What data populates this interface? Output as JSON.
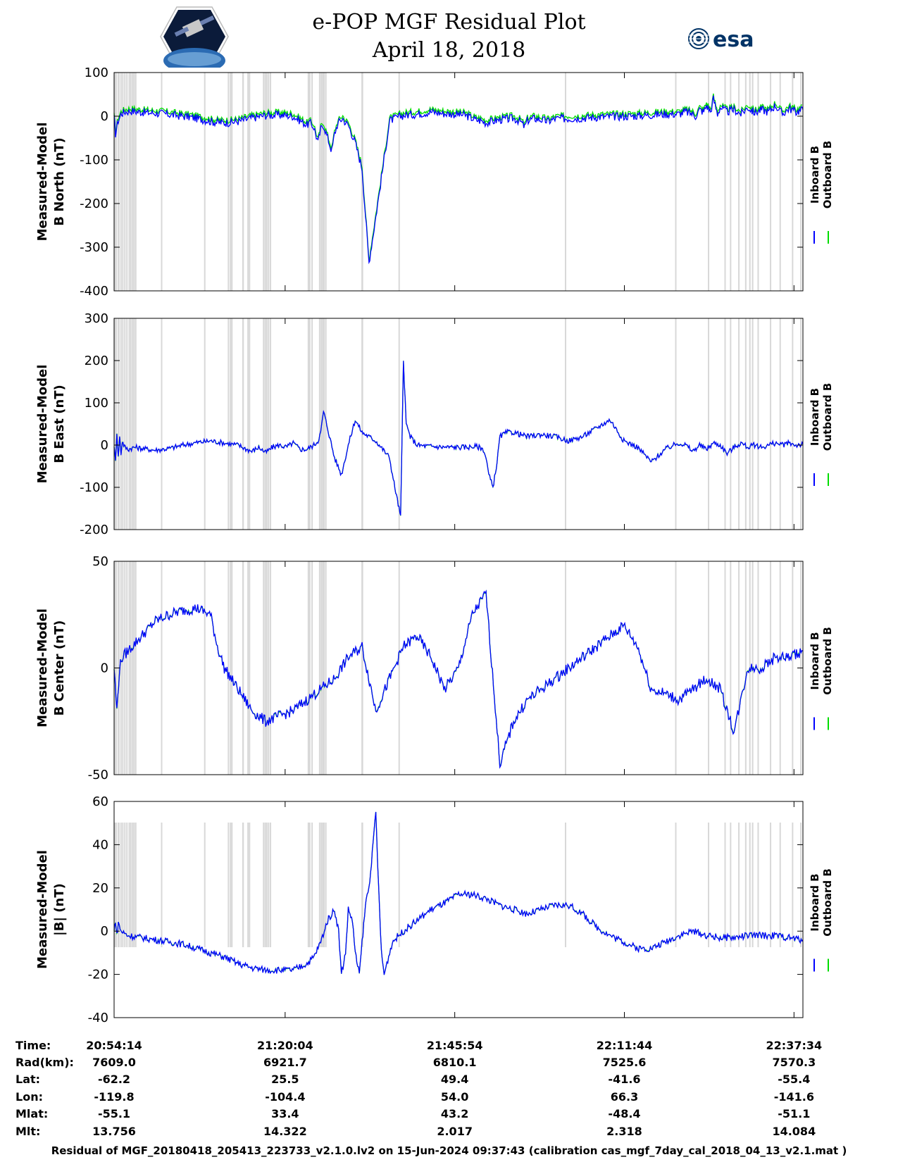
{
  "header": {
    "title": "e-POP MGF Residual Plot",
    "date": "April 18, 2018",
    "left_logo": "cassiope-logo",
    "right_logo": "esa-logo",
    "right_logo_text": "esa"
  },
  "colors": {
    "inboard": "#0000ff",
    "outboard": "#00dd00",
    "gap": "#d8d8d8"
  },
  "legend": {
    "inboard": "Inboard B",
    "outboard": "Outboard B"
  },
  "chart_data": [
    {
      "type": "line",
      "ylabel": [
        "Measured-Model",
        "B North (nT)"
      ],
      "ylim": [
        -400,
        100
      ],
      "yticks": [
        100,
        0,
        -100,
        -200,
        -300,
        -400
      ],
      "x_range_min": [
        0,
        103.33
      ],
      "series": [
        {
          "name": "Inboard B",
          "color": "#0000ff",
          "x": [
            0,
            1,
            3,
            5,
            8,
            12,
            18,
            25,
            35,
            45,
            55,
            60,
            65,
            68,
            70,
            75,
            80,
            85,
            90,
            100,
            110,
            120,
            125,
            130,
            135,
            140,
            142,
            145,
            148,
            150,
            152,
            155,
            158,
            160,
            162,
            164,
            166,
            168,
            170,
            175,
            180,
            185,
            190,
            200,
            210,
            220,
            230,
            240,
            250,
            255,
            258,
            262,
            266,
            270,
            280,
            290,
            295,
            298,
            300,
            305,
            310,
            315,
            320,
            330,
            340,
            350,
            360,
            370,
            380,
            390,
            400,
            410,
            415,
            420,
            422,
            425,
            428,
            430,
            433,
            435,
            438,
            440,
            445,
            450,
            455,
            460,
            465,
            470,
            475,
            480,
            485,
            490,
            495,
            500
          ],
          "y": [
            -5,
            -40,
            -10,
            5,
            10,
            12,
            10,
            8,
            6,
            2,
            -2,
            -5,
            -8,
            -10,
            -12,
            -14,
            -15,
            -14,
            -12,
            -4,
            2,
            3,
            2,
            0,
            -10,
            -20,
            -15,
            -25,
            -60,
            -30,
            -20,
            -50,
            -80,
            -40,
            -20,
            -10,
            -5,
            -15,
            -20,
            -60,
            -120,
            -335,
            -230,
            -10,
            2,
            5,
            10,
            6,
            4,
            2,
            -2,
            -8,
            -10,
            -15,
            -8,
            -5,
            -12,
            -25,
            -10,
            -5,
            -8,
            -12,
            -6,
            -5,
            -4,
            -2,
            -1,
            0,
            1,
            3,
            5,
            5,
            10,
            5,
            0,
            15,
            10,
            25,
            10,
            40,
            5,
            20,
            10,
            15,
            5,
            20,
            8,
            15,
            10,
            25,
            5,
            18,
            10,
            15
          ]
        }
      ],
      "outboard_offset": 6,
      "gaps": [
        [
          0,
          2
        ],
        [
          2.5,
          4
        ],
        [
          4.5,
          5.3
        ],
        [
          5.8,
          6.6
        ],
        [
          7.3,
          7.9
        ],
        [
          8.8,
          9.4
        ],
        [
          10.5,
          11
        ],
        [
          11.6,
          12.3
        ],
        [
          12.9,
          13.5
        ],
        [
          14,
          14.6
        ],
        [
          15.2,
          16
        ],
        [
          34,
          34.5
        ],
        [
          65.3,
          66
        ],
        [
          82.5,
          83
        ],
        [
          84,
          84.5
        ],
        [
          85,
          85.5
        ],
        [
          93,
          94.2
        ],
        [
          96.7,
          97.3
        ],
        [
          97.8,
          98.4
        ],
        [
          108,
          108.6
        ],
        [
          109.2,
          110
        ],
        [
          110.3,
          111
        ],
        [
          111.6,
          112.3
        ],
        [
          113,
          113.5
        ],
        [
          140.5,
          142.5
        ],
        [
          143.2,
          144
        ],
        [
          148.7,
          149.3
        ],
        [
          149.9,
          150.5
        ],
        [
          151,
          151.6
        ],
        [
          151.9,
          152.6
        ],
        [
          153.2,
          153.8
        ],
        [
          179.5,
          180.8
        ],
        [
          206.4,
          207.2
        ],
        [
          327.2,
          328
        ],
        [
          407.2,
          408
        ],
        [
          431,
          432
        ],
        [
          443,
          444
        ],
        [
          447,
          448
        ],
        [
          453,
          454
        ],
        [
          458,
          459
        ],
        [
          461,
          462
        ],
        [
          463,
          464
        ],
        [
          467,
          468
        ],
        [
          476,
          477
        ],
        [
          483,
          484
        ],
        [
          492,
          493
        ],
        [
          498,
          499
        ]
      ]
    },
    {
      "type": "line",
      "ylabel": [
        "Measured-Model",
        "B East (nT)"
      ],
      "ylim": [
        -200,
        300
      ],
      "yticks": [
        300,
        200,
        100,
        0,
        -100,
        -200
      ],
      "x_range_min": [
        0,
        103.33
      ],
      "series": [
        {
          "name": "Inboard B",
          "color": "#0000ff",
          "x": [
            0,
            1,
            2,
            3,
            4,
            5,
            6,
            7,
            8,
            10,
            12,
            15,
            20,
            30,
            40,
            50,
            60,
            70,
            80,
            90,
            95,
            100,
            105,
            110,
            115,
            120,
            125,
            130,
            135,
            140,
            145,
            148,
            150,
            152,
            155,
            160,
            165,
            170,
            175,
            180,
            185,
            190,
            195,
            200,
            202,
            205,
            208,
            210,
            212,
            215,
            220,
            225,
            230,
            235,
            240,
            245,
            250,
            255,
            260,
            262,
            265,
            268,
            270,
            272,
            275,
            278,
            280,
            285,
            290,
            295,
            300,
            310,
            320,
            330,
            340,
            350,
            360,
            370,
            380,
            390,
            400,
            405,
            410,
            415,
            420,
            425,
            430,
            435,
            440,
            445,
            450,
            455,
            460,
            465,
            470,
            475,
            480,
            485,
            490,
            495,
            500
          ],
          "y": [
            0,
            -40,
            30,
            -30,
            20,
            -20,
            10,
            0,
            -5,
            -10,
            -8,
            -5,
            -8,
            -12,
            -8,
            0,
            6,
            10,
            5,
            0,
            -8,
            -15,
            -5,
            -18,
            -5,
            0,
            -5,
            5,
            -10,
            -10,
            0,
            10,
            30,
            80,
            40,
            -30,
            -70,
            0,
            60,
            30,
            20,
            10,
            -10,
            -30,
            -70,
            -120,
            -170,
            200,
            50,
            20,
            0,
            -2,
            -3,
            -4,
            -5,
            -5,
            -5,
            -5,
            -4,
            -3,
            -5,
            -10,
            -30,
            -70,
            -100,
            -40,
            20,
            30,
            30,
            25,
            20,
            25,
            20,
            10,
            20,
            40,
            60,
            10,
            -5,
            -40,
            -10,
            -2,
            5,
            0,
            -15,
            0,
            -10,
            5,
            0,
            -20,
            -5,
            5,
            -5,
            0,
            -5,
            0,
            5,
            0,
            5,
            0,
            2
          ]
        }
      ],
      "outboard_offset": 0,
      "gaps": "same-as-panel-1"
    },
    {
      "type": "line",
      "ylabel": [
        "Measured-Model",
        "B Center (nT)"
      ],
      "ylim": [
        -50,
        50
      ],
      "yticks": [
        50,
        0,
        -50
      ],
      "x_range_min": [
        0,
        103.33
      ],
      "series": [
        {
          "name": "Inboard B",
          "color": "#0000ff",
          "x": [
            0,
            2,
            4,
            6,
            10,
            20,
            30,
            40,
            50,
            60,
            70,
            75,
            80,
            90,
            100,
            110,
            130,
            140,
            150,
            160,
            170,
            180,
            190,
            200,
            210,
            220,
            230,
            240,
            250,
            260,
            270,
            280,
            290,
            300,
            310,
            320,
            330,
            340,
            350,
            360,
            370,
            380,
            390,
            400,
            410,
            420,
            430,
            440,
            450,
            460,
            470,
            480,
            490,
            500
          ],
          "y": [
            0,
            -20,
            0,
            5,
            8,
            15,
            22,
            25,
            27,
            28,
            25,
            10,
            0,
            -10,
            -20,
            -25,
            -20,
            -15,
            -10,
            -5,
            5,
            10,
            -20,
            -5,
            10,
            15,
            5,
            -10,
            0,
            25,
            35,
            -45,
            -25,
            -15,
            -10,
            -5,
            0,
            5,
            10,
            15,
            20,
            10,
            -10,
            -12,
            -15,
            -10,
            -5,
            -10,
            -30,
            0,
            0,
            5,
            5,
            8
          ]
        }
      ],
      "outboard_offset": 0,
      "gaps": "same-as-panel-1"
    },
    {
      "type": "line",
      "ylabel": [
        "Measured-Model",
        "|B| (nT)"
      ],
      "ylim": [
        -40,
        60
      ],
      "yticks": [
        60,
        40,
        20,
        0,
        -20,
        -40
      ],
      "x_range_min": [
        0,
        103.33
      ],
      "series": [
        {
          "name": "Inboard B",
          "color": "#0000ff",
          "x": [
            0,
            1,
            2,
            3,
            5,
            10,
            20,
            30,
            40,
            50,
            60,
            70,
            80,
            90,
            100,
            110,
            120,
            130,
            140,
            145,
            150,
            155,
            160,
            163,
            165,
            168,
            170,
            173,
            175,
            178,
            180,
            183,
            185,
            188,
            190,
            192,
            194,
            196,
            198,
            200,
            202,
            205,
            210,
            220,
            230,
            240,
            250,
            260,
            270,
            280,
            290,
            300,
            310,
            320,
            330,
            340,
            350,
            360,
            370,
            380,
            390,
            400,
            410,
            420,
            430,
            440,
            450,
            460,
            470,
            480,
            490,
            500
          ],
          "y": [
            0,
            5,
            -2,
            4,
            0,
            -2,
            -3,
            -4,
            -5,
            -6,
            -8,
            -10,
            -12,
            -15,
            -17,
            -18,
            -18,
            -18,
            -15,
            -12,
            -5,
            5,
            10,
            0,
            -20,
            -10,
            10,
            5,
            -10,
            -20,
            -5,
            15,
            20,
            40,
            55,
            20,
            -10,
            -20,
            -15,
            -10,
            -5,
            -3,
            0,
            5,
            10,
            13,
            17,
            17,
            15,
            12,
            10,
            8,
            10,
            12,
            12,
            8,
            2,
            -2,
            -5,
            -8,
            -8,
            -5,
            -2,
            0,
            -2,
            -3,
            -3,
            -2,
            -2,
            -2,
            -3,
            -4
          ]
        }
      ],
      "outboard_offset": 0,
      "gaps": "same-as-panel-1"
    }
  ],
  "x_axis_ticks": [
    "20:54:14",
    "21:20:04",
    "21:45:54",
    "22:11:44",
    "22:37:34"
  ],
  "ephemeris": {
    "labels": [
      "Time:",
      "Rad(km):",
      "Lat:",
      "Lon:",
      "Mlat:",
      "Mlt:"
    ],
    "columns": [
      [
        "20:54:14",
        "7609.0",
        "-62.2",
        "-119.8",
        "-55.1",
        "13.756"
      ],
      [
        "21:20:04",
        "6921.7",
        "25.5",
        "-104.4",
        "33.4",
        "14.322"
      ],
      [
        "21:45:54",
        "6810.1",
        "49.4",
        "54.0",
        "43.2",
        "2.017"
      ],
      [
        "22:11:44",
        "7525.6",
        "-41.6",
        "66.3",
        "-48.4",
        "2.318"
      ],
      [
        "22:37:34",
        "7570.3",
        "-55.4",
        "-141.6",
        "-51.1",
        "14.084"
      ]
    ]
  },
  "footer": "Residual of MGF_20180418_205413_223733_v2.1.0.lv2 on 15-Jun-2024 09:37:43 (calibration cas_mgf_7day_cal_2018_04_13_v2.1.mat )"
}
